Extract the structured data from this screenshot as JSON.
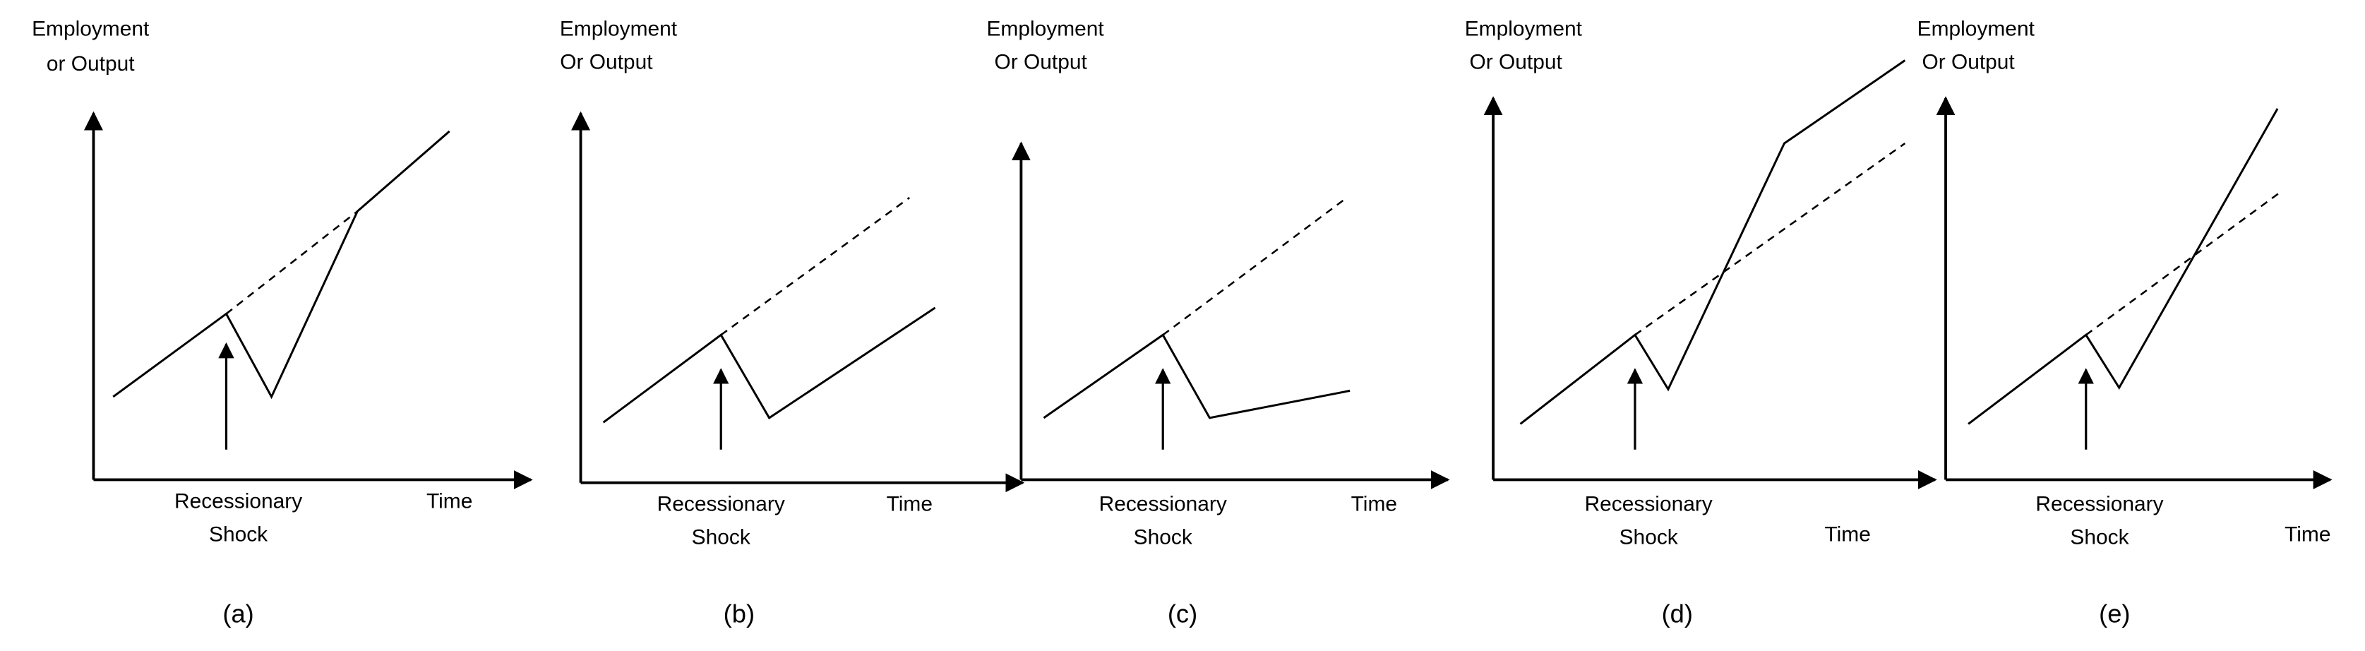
{
  "panels": [
    {
      "y_label": [
        "Employment",
        "or Output"
      ],
      "shock_label": [
        "Recessionary",
        "Shock"
      ],
      "x_label": "Time",
      "caption": "(a)"
    },
    {
      "y_label": [
        "Employment",
        "Or Output"
      ],
      "shock_label": [
        "Recessionary",
        "Shock"
      ],
      "x_label": "Time",
      "caption": "(b)"
    },
    {
      "y_label": [
        "Employment",
        "Or Output"
      ],
      "shock_label": [
        "Recessionary",
        "Shock"
      ],
      "x_label": "Time",
      "caption": "(c)"
    },
    {
      "y_label": [
        "Employment",
        "Or Output"
      ],
      "shock_label": [
        "Recessionary",
        "Shock"
      ],
      "x_label": "Time",
      "caption": "(d)"
    },
    {
      "y_label": [
        "Employment",
        "Or Output"
      ],
      "shock_label": [
        "Recessionary",
        "Shock"
      ],
      "x_label": "Time",
      "caption": "(e)"
    }
  ]
}
